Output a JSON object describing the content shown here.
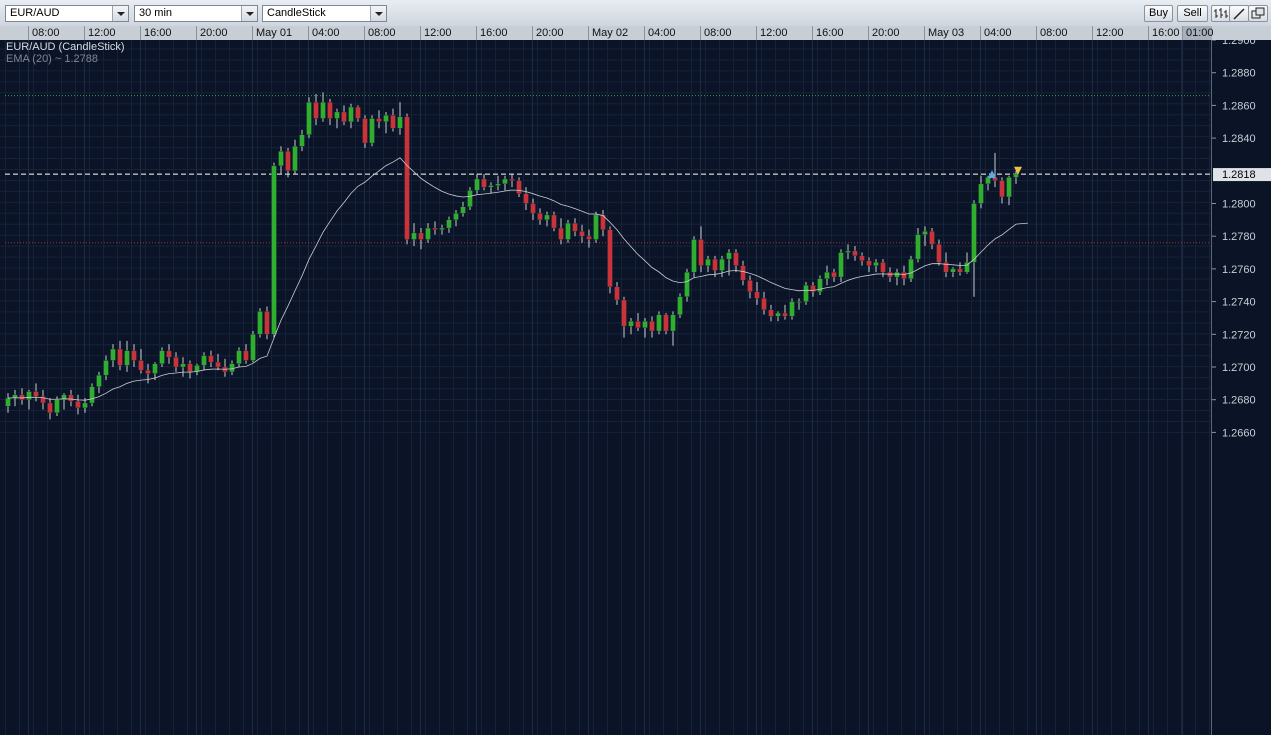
{
  "toolbar": {
    "symbol": "EUR/AUD",
    "timeframe": "30 min",
    "chart_style": "CandleStick",
    "buy_label": "Buy",
    "sell_label": "Sell"
  },
  "time_axis": [
    "08:00",
    "12:00",
    "16:00",
    "20:00",
    "May 01",
    "04:00",
    "08:00",
    "12:00",
    "16:00",
    "20:00",
    "May 02",
    "04:00",
    "08:00",
    "12:00",
    "16:00",
    "20:00",
    "May 03",
    "04:00",
    "08:00",
    "12:00",
    "16:00",
    "01:00"
  ],
  "legend": {
    "title": "EUR/AUD (CandleStick)",
    "indicator": "EMA (20) ~ 1.2788"
  },
  "price_axis": {
    "labels": [
      "1.2900",
      "1.2880",
      "1.2860",
      "1.2840",
      "1.2800",
      "1.2780",
      "1.2760",
      "1.2740",
      "1.2720",
      "1.2700",
      "1.2680",
      "1.2660"
    ],
    "current_price": "1.2818"
  },
  "colors": {
    "background": "#0a1426",
    "up": "#2fae2f",
    "down": "#c8343a",
    "ema": "#c9ccd2",
    "high_line": "#3c9a3c",
    "low_line": "#a03036",
    "current_line": "#ffffff"
  },
  "chart_data": {
    "type": "candlestick",
    "symbol": "EUR/AUD",
    "interval": "30 min",
    "ylim": [
      1.266,
      1.291
    ],
    "reference_lines": {
      "high": 1.2866,
      "current": 1.2818,
      "low": 1.2776
    },
    "ohlc": [
      [
        1.2676,
        1.2684,
        1.2672,
        1.2681
      ],
      [
        1.2681,
        1.2686,
        1.2676,
        1.2683
      ],
      [
        1.2683,
        1.2687,
        1.2677,
        1.268
      ],
      [
        1.268,
        1.2686,
        1.2674,
        1.2685
      ],
      [
        1.2685,
        1.269,
        1.2679,
        1.2682
      ],
      [
        1.2682,
        1.2686,
        1.2674,
        1.2678
      ],
      [
        1.2678,
        1.2681,
        1.2668,
        1.2672
      ],
      [
        1.2672,
        1.2682,
        1.267,
        1.268
      ],
      [
        1.268,
        1.2684,
        1.2674,
        1.2683
      ],
      [
        1.2683,
        1.2686,
        1.2676,
        1.2679
      ],
      [
        1.2679,
        1.2683,
        1.2671,
        1.2675
      ],
      [
        1.2675,
        1.2681,
        1.2672,
        1.2678
      ],
      [
        1.2678,
        1.269,
        1.2676,
        1.2688
      ],
      [
        1.2688,
        1.2697,
        1.2684,
        1.2695
      ],
      [
        1.2695,
        1.2707,
        1.2692,
        1.2704
      ],
      [
        1.2704,
        1.2714,
        1.27,
        1.2711
      ],
      [
        1.2711,
        1.2716,
        1.2698,
        1.2701
      ],
      [
        1.2701,
        1.2716,
        1.2697,
        1.271
      ],
      [
        1.271,
        1.2714,
        1.27,
        1.2704
      ],
      [
        1.2704,
        1.2711,
        1.2696,
        1.2698
      ],
      [
        1.2698,
        1.2702,
        1.269,
        1.2696
      ],
      [
        1.2696,
        1.2703,
        1.2692,
        1.2702
      ],
      [
        1.2702,
        1.2712,
        1.27,
        1.271
      ],
      [
        1.271,
        1.2714,
        1.2702,
        1.2706
      ],
      [
        1.2706,
        1.2709,
        1.2697,
        1.27
      ],
      [
        1.27,
        1.2706,
        1.2694,
        1.2702
      ],
      [
        1.2702,
        1.2704,
        1.2693,
        1.2697
      ],
      [
        1.2697,
        1.2702,
        1.2695,
        1.2701
      ],
      [
        1.2701,
        1.2709,
        1.2698,
        1.2707
      ],
      [
        1.2707,
        1.271,
        1.27,
        1.2703
      ],
      [
        1.2703,
        1.2708,
        1.2698,
        1.27
      ],
      [
        1.27,
        1.2705,
        1.2694,
        1.2697
      ],
      [
        1.2697,
        1.2704,
        1.2695,
        1.2702
      ],
      [
        1.2702,
        1.2712,
        1.27,
        1.271
      ],
      [
        1.271,
        1.2714,
        1.2702,
        1.2704
      ],
      [
        1.2704,
        1.2722,
        1.2703,
        1.272
      ],
      [
        1.272,
        1.2736,
        1.2718,
        1.2734
      ],
      [
        1.2734,
        1.2737,
        1.2717,
        1.272
      ],
      [
        1.272,
        1.2825,
        1.2718,
        1.2823
      ],
      [
        1.2823,
        1.2835,
        1.2818,
        1.2832
      ],
      [
        1.2832,
        1.2834,
        1.2816,
        1.282
      ],
      [
        1.282,
        1.2839,
        1.2818,
        1.2835
      ],
      [
        1.2835,
        1.2845,
        1.2832,
        1.2842
      ],
      [
        1.2842,
        1.2865,
        1.284,
        1.2862
      ],
      [
        1.2862,
        1.2867,
        1.2848,
        1.2852
      ],
      [
        1.2852,
        1.2868,
        1.285,
        1.2862
      ],
      [
        1.2862,
        1.2864,
        1.2848,
        1.2852
      ],
      [
        1.2852,
        1.2858,
        1.2846,
        1.2856
      ],
      [
        1.2856,
        1.286,
        1.2848,
        1.285
      ],
      [
        1.285,
        1.2861,
        1.2846,
        1.2859
      ],
      [
        1.2859,
        1.286,
        1.285,
        1.2852
      ],
      [
        1.2852,
        1.2854,
        1.2834,
        1.2837
      ],
      [
        1.2837,
        1.2854,
        1.2835,
        1.2852
      ],
      [
        1.2852,
        1.2857,
        1.2846,
        1.285
      ],
      [
        1.285,
        1.2856,
        1.2843,
        1.2854
      ],
      [
        1.2854,
        1.2858,
        1.2844,
        1.2846
      ],
      [
        1.2846,
        1.2862,
        1.2842,
        1.2853
      ],
      [
        1.2853,
        1.2855,
        1.2775,
        1.2778
      ],
      [
        1.2778,
        1.2788,
        1.2774,
        1.2782
      ],
      [
        1.2782,
        1.2785,
        1.2772,
        1.2778
      ],
      [
        1.2778,
        1.2788,
        1.2776,
        1.2785
      ],
      [
        1.2785,
        1.2789,
        1.2781,
        1.2784
      ],
      [
        1.2784,
        1.2787,
        1.2781,
        1.2785
      ],
      [
        1.2785,
        1.2792,
        1.2782,
        1.279
      ],
      [
        1.279,
        1.2796,
        1.2786,
        1.2794
      ],
      [
        1.2794,
        1.2801,
        1.2792,
        1.2798
      ],
      [
        1.2798,
        1.281,
        1.2796,
        1.2808
      ],
      [
        1.2808,
        1.2818,
        1.2806,
        1.2815
      ],
      [
        1.2815,
        1.2818,
        1.2808,
        1.281
      ],
      [
        1.281,
        1.2813,
        1.2806,
        1.2811
      ],
      [
        1.2811,
        1.2817,
        1.2808,
        1.2812
      ],
      [
        1.2812,
        1.2817,
        1.2808,
        1.2815
      ],
      [
        1.2815,
        1.2818,
        1.281,
        1.2814
      ],
      [
        1.2814,
        1.2816,
        1.2804,
        1.2806
      ],
      [
        1.2806,
        1.281,
        1.2796,
        1.28
      ],
      [
        1.28,
        1.2803,
        1.279,
        1.2794
      ],
      [
        1.2794,
        1.2797,
        1.2787,
        1.279
      ],
      [
        1.279,
        1.2795,
        1.2786,
        1.2793
      ],
      [
        1.2793,
        1.2795,
        1.2783,
        1.2785
      ],
      [
        1.2785,
        1.2791,
        1.2775,
        1.2778
      ],
      [
        1.2778,
        1.279,
        1.2776,
        1.2788
      ],
      [
        1.2788,
        1.2791,
        1.278,
        1.2783
      ],
      [
        1.2783,
        1.2787,
        1.2776,
        1.278
      ],
      [
        1.278,
        1.2784,
        1.2773,
        1.2778
      ],
      [
        1.2778,
        1.2795,
        1.2776,
        1.2793
      ],
      [
        1.2793,
        1.2796,
        1.278,
        1.2784
      ],
      [
        1.2784,
        1.2786,
        1.2745,
        1.2749
      ],
      [
        1.2749,
        1.2752,
        1.2738,
        1.2741
      ],
      [
        1.2741,
        1.2743,
        1.2718,
        1.2725
      ],
      [
        1.2725,
        1.273,
        1.272,
        1.2728
      ],
      [
        1.2728,
        1.2733,
        1.2722,
        1.2724
      ],
      [
        1.2724,
        1.273,
        1.2718,
        1.2728
      ],
      [
        1.2728,
        1.2731,
        1.2718,
        1.2722
      ],
      [
        1.2722,
        1.2734,
        1.272,
        1.2732
      ],
      [
        1.2732,
        1.2733,
        1.272,
        1.2722
      ],
      [
        1.2722,
        1.2734,
        1.2713,
        1.2732
      ],
      [
        1.2732,
        1.2745,
        1.273,
        1.2743
      ],
      [
        1.2743,
        1.276,
        1.274,
        1.2758
      ],
      [
        1.2758,
        1.278,
        1.2755,
        1.2778
      ],
      [
        1.2778,
        1.2786,
        1.2758,
        1.2762
      ],
      [
        1.2762,
        1.2768,
        1.2758,
        1.2766
      ],
      [
        1.2766,
        1.2768,
        1.2755,
        1.2759
      ],
      [
        1.2759,
        1.2768,
        1.2755,
        1.2766
      ],
      [
        1.2766,
        1.2772,
        1.2756,
        1.277
      ],
      [
        1.277,
        1.2772,
        1.2758,
        1.2762
      ],
      [
        1.2762,
        1.2765,
        1.275,
        1.2753
      ],
      [
        1.2753,
        1.2756,
        1.2742,
        1.2746
      ],
      [
        1.2746,
        1.2752,
        1.2738,
        1.2742
      ],
      [
        1.2742,
        1.2746,
        1.2732,
        1.2735
      ],
      [
        1.2735,
        1.2738,
        1.2728,
        1.2731
      ],
      [
        1.2731,
        1.2734,
        1.2728,
        1.2733
      ],
      [
        1.2733,
        1.2738,
        1.2729,
        1.2731
      ],
      [
        1.2731,
        1.2742,
        1.2729,
        1.274
      ],
      [
        1.274,
        1.2742,
        1.2735,
        1.274
      ],
      [
        1.274,
        1.2752,
        1.2738,
        1.275
      ],
      [
        1.275,
        1.2752,
        1.2743,
        1.2746
      ],
      [
        1.2746,
        1.2756,
        1.2744,
        1.2754
      ],
      [
        1.2754,
        1.2762,
        1.275,
        1.2758
      ],
      [
        1.2758,
        1.276,
        1.2752,
        1.2755
      ],
      [
        1.2755,
        1.2772,
        1.2752,
        1.277
      ],
      [
        1.277,
        1.2775,
        1.2766,
        1.2771
      ],
      [
        1.2771,
        1.2774,
        1.2765,
        1.2768
      ],
      [
        1.2768,
        1.277,
        1.2762,
        1.2765
      ],
      [
        1.2765,
        1.2767,
        1.2758,
        1.2762
      ],
      [
        1.2762,
        1.2766,
        1.2758,
        1.2764
      ],
      [
        1.2764,
        1.2766,
        1.2755,
        1.2758
      ],
      [
        1.2758,
        1.2761,
        1.2752,
        1.2755
      ],
      [
        1.2755,
        1.276,
        1.275,
        1.2758
      ],
      [
        1.2758,
        1.2762,
        1.275,
        1.2754
      ],
      [
        1.2754,
        1.2768,
        1.2752,
        1.2766
      ],
      [
        1.2766,
        1.2785,
        1.2764,
        1.2781
      ],
      [
        1.2781,
        1.2786,
        1.2774,
        1.2783
      ],
      [
        1.2783,
        1.2785,
        1.2772,
        1.2775
      ],
      [
        1.2775,
        1.2778,
        1.2762,
        1.2764
      ],
      [
        1.2764,
        1.277,
        1.2755,
        1.2758
      ],
      [
        1.2758,
        1.2761,
        1.2755,
        1.276
      ],
      [
        1.276,
        1.2764,
        1.2756,
        1.2758
      ],
      [
        1.2758,
        1.277,
        1.2757,
        1.2764
      ],
      [
        1.2764,
        1.2802,
        1.2743,
        1.28
      ],
      [
        1.28,
        1.2817,
        1.2797,
        1.2812
      ],
      [
        1.2812,
        1.2817,
        1.2808,
        1.2816
      ],
      [
        1.2816,
        1.2831,
        1.281,
        1.2814
      ],
      [
        1.2814,
        1.2816,
        1.28,
        1.2804
      ],
      [
        1.2804,
        1.2817,
        1.2799,
        1.2816
      ],
      [
        1.2816,
        1.282,
        1.2812,
        1.2818
      ]
    ],
    "ema": {
      "name": "EMA (20)",
      "last": 1.2788
    }
  }
}
